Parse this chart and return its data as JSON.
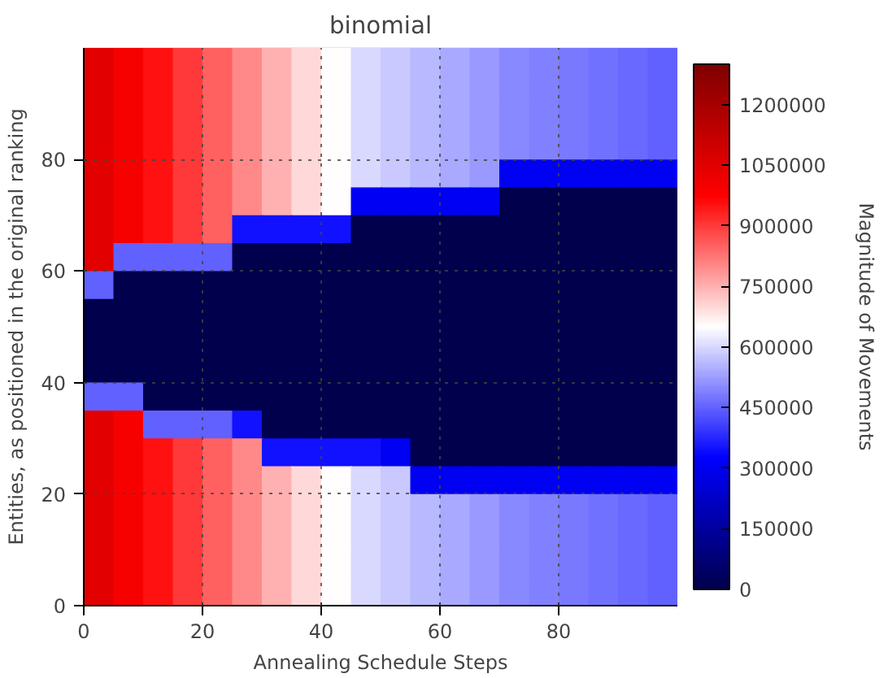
{
  "chart_data": {
    "type": "heatmap",
    "title": "binomial",
    "xlabel": "Annealing Schedule Steps",
    "ylabel": "Entities, as positioned in the original ranking",
    "clabel": "Magnitude of Movements",
    "xlim": [
      0,
      100
    ],
    "ylim": [
      0,
      100
    ],
    "xticks": [
      0,
      20,
      40,
      60,
      80
    ],
    "yticks": [
      0,
      20,
      40,
      60,
      80
    ],
    "grid": true,
    "clim": [
      0,
      1300000
    ],
    "cticks": [
      0,
      150000,
      300000,
      450000,
      600000,
      750000,
      900000,
      1050000,
      1200000
    ],
    "cells": [
      [
        1050000,
        1000000,
        950000,
        900000,
        850000,
        800000,
        750000,
        700000,
        650000,
        600000,
        580000,
        560000,
        540000,
        520000,
        500000,
        490000,
        480000,
        470000,
        460000,
        450000
      ],
      [
        1050000,
        1000000,
        950000,
        900000,
        850000,
        800000,
        750000,
        700000,
        650000,
        600000,
        580000,
        560000,
        540000,
        520000,
        500000,
        490000,
        480000,
        470000,
        460000,
        450000
      ],
      [
        1050000,
        1000000,
        950000,
        900000,
        850000,
        800000,
        750000,
        700000,
        650000,
        600000,
        580000,
        560000,
        540000,
        520000,
        500000,
        490000,
        480000,
        470000,
        460000,
        450000
      ],
      [
        1050000,
        1000000,
        950000,
        900000,
        850000,
        800000,
        750000,
        700000,
        650000,
        600000,
        580000,
        560000,
        540000,
        520000,
        500000,
        490000,
        480000,
        470000,
        460000,
        450000
      ],
      [
        1050000,
        1000000,
        950000,
        900000,
        850000,
        800000,
        750000,
        700000,
        650000,
        600000,
        580000,
        560000,
        540000,
        520000,
        300000,
        300000,
        300000,
        300000,
        300000,
        300000
      ],
      [
        1050000,
        1000000,
        950000,
        900000,
        850000,
        800000,
        750000,
        700000,
        650000,
        300000,
        300000,
        300000,
        300000,
        300000,
        0,
        0,
        0,
        0,
        0,
        0
      ],
      [
        1050000,
        1000000,
        950000,
        900000,
        850000,
        350000,
        350000,
        350000,
        350000,
        0,
        0,
        0,
        0,
        0,
        0,
        0,
        0,
        0,
        0,
        0
      ],
      [
        1050000,
        450000,
        450000,
        450000,
        450000,
        0,
        0,
        0,
        0,
        0,
        0,
        0,
        0,
        0,
        0,
        0,
        0,
        0,
        0,
        0
      ],
      [
        450000,
        0,
        0,
        0,
        0,
        0,
        0,
        0,
        0,
        0,
        0,
        0,
        0,
        0,
        0,
        0,
        0,
        0,
        0,
        0
      ],
      [
        0,
        0,
        0,
        0,
        0,
        0,
        0,
        0,
        0,
        0,
        0,
        0,
        0,
        0,
        0,
        0,
        0,
        0,
        0,
        0
      ],
      [
        0,
        0,
        0,
        0,
        0,
        0,
        0,
        0,
        0,
        0,
        0,
        0,
        0,
        0,
        0,
        0,
        0,
        0,
        0,
        0
      ],
      [
        0,
        0,
        0,
        0,
        0,
        0,
        0,
        0,
        0,
        0,
        0,
        0,
        0,
        0,
        0,
        0,
        0,
        0,
        0,
        0
      ],
      [
        450000,
        450000,
        0,
        0,
        0,
        0,
        0,
        0,
        0,
        0,
        0,
        0,
        0,
        0,
        0,
        0,
        0,
        0,
        0,
        0
      ],
      [
        1050000,
        1000000,
        450000,
        450000,
        450000,
        350000,
        0,
        0,
        0,
        0,
        0,
        0,
        0,
        0,
        0,
        0,
        0,
        0,
        0,
        0
      ],
      [
        1050000,
        1000000,
        950000,
        900000,
        850000,
        800000,
        350000,
        350000,
        350000,
        350000,
        300000,
        0,
        0,
        0,
        0,
        0,
        0,
        0,
        0,
        0
      ],
      [
        1050000,
        1000000,
        950000,
        900000,
        850000,
        800000,
        750000,
        700000,
        650000,
        600000,
        580000,
        300000,
        300000,
        300000,
        300000,
        300000,
        300000,
        300000,
        300000,
        300000
      ],
      [
        1050000,
        1000000,
        950000,
        900000,
        850000,
        800000,
        750000,
        700000,
        650000,
        600000,
        580000,
        560000,
        540000,
        520000,
        500000,
        490000,
        480000,
        470000,
        460000,
        450000
      ],
      [
        1050000,
        1000000,
        950000,
        900000,
        850000,
        800000,
        750000,
        700000,
        650000,
        600000,
        580000,
        560000,
        540000,
        520000,
        500000,
        490000,
        480000,
        470000,
        460000,
        450000
      ],
      [
        1050000,
        1000000,
        950000,
        900000,
        850000,
        800000,
        750000,
        700000,
        650000,
        600000,
        580000,
        560000,
        540000,
        520000,
        500000,
        490000,
        480000,
        470000,
        460000,
        450000
      ],
      [
        1050000,
        1000000,
        950000,
        900000,
        850000,
        800000,
        750000,
        700000,
        650000,
        600000,
        580000,
        560000,
        540000,
        520000,
        500000,
        490000,
        480000,
        470000,
        460000,
        450000
      ]
    ]
  }
}
